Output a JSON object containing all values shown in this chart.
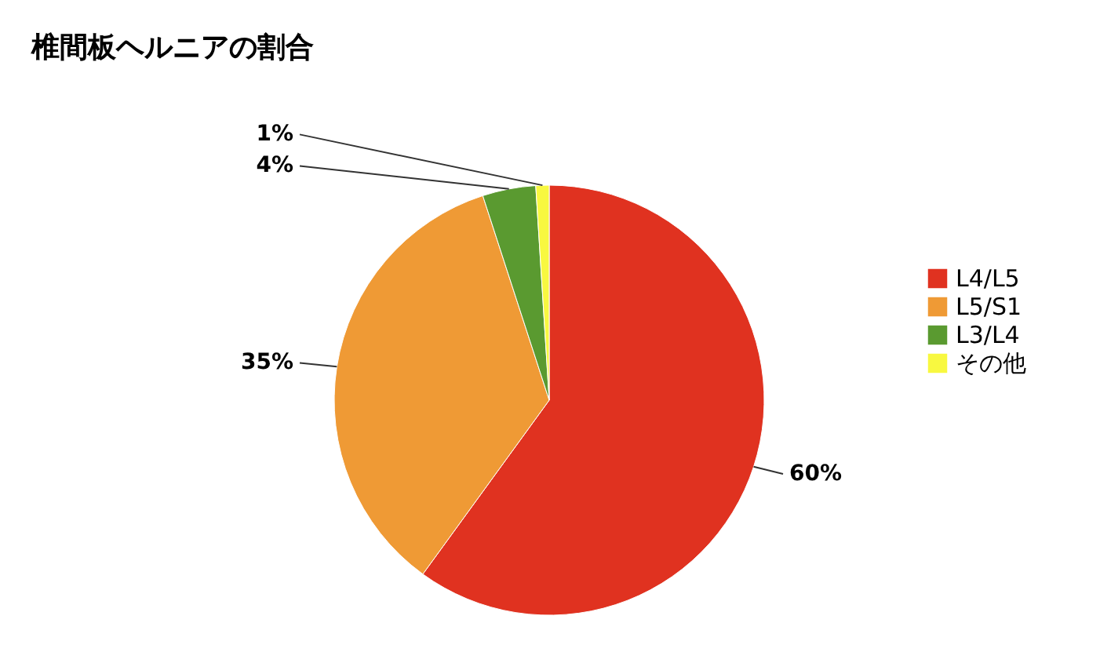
{
  "chart_data": {
    "type": "pie",
    "title": "椎間板ヘルニアの割合",
    "categories": [
      "L4/L5",
      "L5/S1",
      "L3/L4",
      "その他"
    ],
    "values": [
      60,
      35,
      4,
      1
    ],
    "colors": [
      "#e03220",
      "#ef9a35",
      "#5a9a30",
      "#f8f840"
    ],
    "value_labels": [
      "60%",
      "35%",
      "4%",
      "1%"
    ],
    "legend": "right"
  }
}
